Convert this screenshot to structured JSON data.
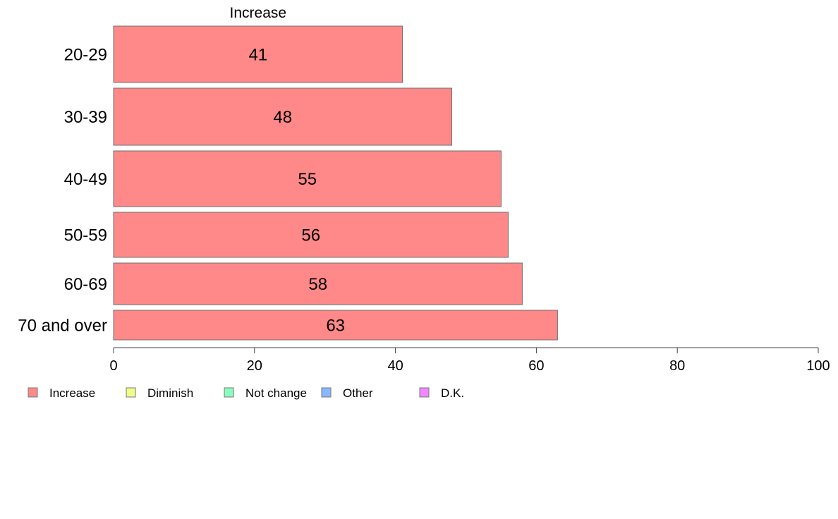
{
  "chart_data": {
    "type": "bar",
    "orientation": "horizontal",
    "stacked": true,
    "categories": [
      "20-29",
      "30-39",
      "40-49",
      "50-59",
      "60-69",
      "70 and over"
    ],
    "series": [
      {
        "name": "Increase",
        "values": [
          41,
          48,
          55,
          56,
          58,
          63
        ],
        "color": "#ff8888"
      }
    ],
    "segment_header": "Increase",
    "xlim": [
      0,
      100
    ],
    "xticks": [
      0,
      20,
      40,
      60,
      80,
      100
    ],
    "grid": false,
    "legend_position": "bottom-left",
    "legend": [
      {
        "label": "Increase",
        "color": "#ff8888"
      },
      {
        "label": "Diminish",
        "color": "#f0ff88"
      },
      {
        "label": "Not change",
        "color": "#88ffc0"
      },
      {
        "label": "Other",
        "color": "#88b8ff"
      },
      {
        "label": "D.K.",
        "color": "#f088ff"
      }
    ]
  }
}
